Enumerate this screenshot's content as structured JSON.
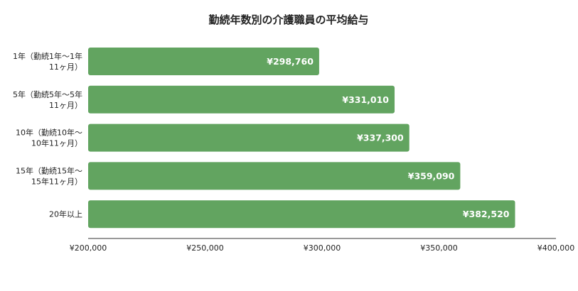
{
  "chart_data": {
    "type": "bar",
    "orientation": "horizontal",
    "title": "勤続年数別の介護職員の平均給与",
    "categories": [
      [
        "1年（勤続1年～1年",
        "11ヶ月）"
      ],
      [
        "5年（勤続5年～5年",
        "11ヶ月）"
      ],
      [
        "10年（勤続10年～",
        "10年11ヶ月）"
      ],
      [
        "15年（勤続15年～",
        "15年11ヶ月）"
      ],
      [
        "20年以上"
      ]
    ],
    "values": [
      298760,
      331010,
      337300,
      359090,
      382520
    ],
    "data_labels": [
      "¥298,760",
      "¥331,010",
      "¥337,300",
      "¥359,090",
      "¥382,520"
    ],
    "xlim": [
      200000,
      400000
    ],
    "x_ticks": [
      200000,
      250000,
      300000,
      350000,
      400000
    ],
    "x_tick_labels": [
      "¥200,000",
      "¥250,000",
      "¥300,000",
      "¥350,000",
      "¥400,000"
    ],
    "grid": false,
    "legend": "none",
    "bar_color": "#62a460",
    "axis_color": "#333333"
  }
}
